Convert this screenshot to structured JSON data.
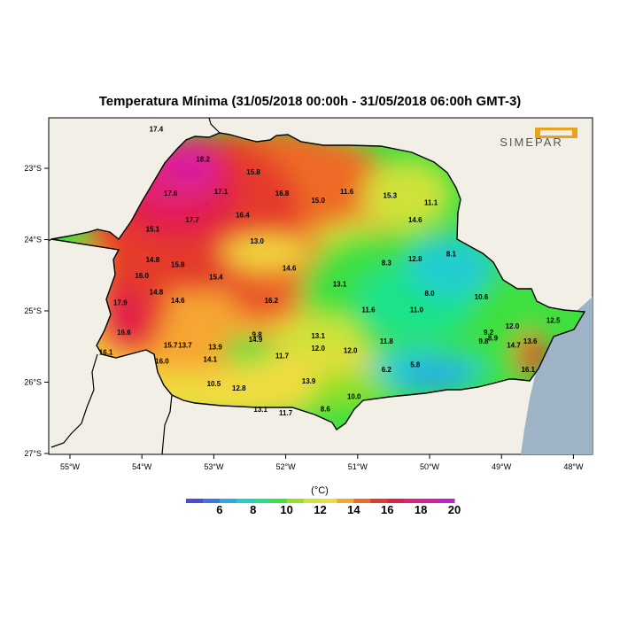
{
  "title": "Temperatura Mínima (31/05/2018 00:00h - 31/05/2018 06:00h GMT-3)",
  "logo_text": "SIMEPAR",
  "colorbar": {
    "unit": "(°C)",
    "labels": [
      "6",
      "8",
      "10",
      "12",
      "14",
      "16",
      "18",
      "20"
    ],
    "colors": [
      "#4a4adc",
      "#3a78e0",
      "#2aaae0",
      "#22cdd0",
      "#1ee28a",
      "#3ee040",
      "#8ee028",
      "#cfe23a",
      "#f0dc40",
      "#f6a632",
      "#ee6a28",
      "#e43a2c",
      "#e21e48",
      "#e0207a",
      "#d81ea8",
      "#c220c8"
    ]
  },
  "axes": {
    "lon_labels": [
      "55°W",
      "54°W",
      "53°W",
      "52°W",
      "51°W",
      "50°W",
      "49°W",
      "48°W"
    ],
    "lat_labels": [
      "23°S",
      "24°S",
      "25°S",
      "26°S",
      "27°S"
    ]
  },
  "station_values": [
    {
      "text": "17.4",
      "lon": -53.8,
      "lat": -22.45
    },
    {
      "text": "18.2",
      "lon": -53.15,
      "lat": -22.87
    },
    {
      "text": "15.8",
      "lon": -52.45,
      "lat": -23.05
    },
    {
      "text": "17.6",
      "lon": -53.6,
      "lat": -23.35
    },
    {
      "text": "17.1",
      "lon": -52.9,
      "lat": -23.32
    },
    {
      "text": "16.8",
      "lon": -52.05,
      "lat": -23.35
    },
    {
      "text": "15.0",
      "lon": -51.55,
      "lat": -23.45
    },
    {
      "text": "11.6",
      "lon": -51.15,
      "lat": -23.32
    },
    {
      "text": "15.3",
      "lon": -50.55,
      "lat": -23.38
    },
    {
      "text": "11.1",
      "lon": -49.98,
      "lat": -23.48
    },
    {
      "text": "16.4",
      "lon": -52.6,
      "lat": -23.65
    },
    {
      "text": "17.7",
      "lon": -53.3,
      "lat": -23.72
    },
    {
      "text": "14.6",
      "lon": -50.2,
      "lat": -23.72
    },
    {
      "text": "15.1",
      "lon": -53.85,
      "lat": -23.85
    },
    {
      "text": "13.0",
      "lon": -52.4,
      "lat": -24.02
    },
    {
      "text": "14.8",
      "lon": -53.85,
      "lat": -24.28
    },
    {
      "text": "15.8",
      "lon": -53.5,
      "lat": -24.35
    },
    {
      "text": "8.1",
      "lon": -49.7,
      "lat": -24.2
    },
    {
      "text": "12.8",
      "lon": -50.2,
      "lat": -24.27
    },
    {
      "text": "8.3",
      "lon": -50.6,
      "lat": -24.32
    },
    {
      "text": "14.6",
      "lon": -51.95,
      "lat": -24.4
    },
    {
      "text": "16.0",
      "lon": -54.0,
      "lat": -24.5
    },
    {
      "text": "15.4",
      "lon": -52.97,
      "lat": -24.52
    },
    {
      "text": "13.1",
      "lon": -51.25,
      "lat": -24.62
    },
    {
      "text": "8.0",
      "lon": -50.0,
      "lat": -24.75
    },
    {
      "text": "10.6",
      "lon": -49.28,
      "lat": -24.8
    },
    {
      "text": "14.8",
      "lon": -53.8,
      "lat": -24.73
    },
    {
      "text": "14.6",
      "lon": -53.5,
      "lat": -24.85
    },
    {
      "text": "16.2",
      "lon": -52.2,
      "lat": -24.85
    },
    {
      "text": "17.9",
      "lon": -54.3,
      "lat": -24.88
    },
    {
      "text": "11.6",
      "lon": -50.85,
      "lat": -24.98
    },
    {
      "text": "11.0",
      "lon": -50.18,
      "lat": -24.98
    },
    {
      "text": "12.5",
      "lon": -48.28,
      "lat": -25.13
    },
    {
      "text": "12.0",
      "lon": -48.85,
      "lat": -25.21
    },
    {
      "text": "16.6",
      "lon": -54.25,
      "lat": -25.3
    },
    {
      "text": "9.8",
      "lon": -52.4,
      "lat": -25.33
    },
    {
      "text": "13.1",
      "lon": -51.55,
      "lat": -25.35
    },
    {
      "text": "9.2",
      "lon": -49.18,
      "lat": -25.3
    },
    {
      "text": "8.9",
      "lon": -49.12,
      "lat": -25.38
    },
    {
      "text": "14.9",
      "lon": -52.42,
      "lat": -25.4
    },
    {
      "text": "9.8",
      "lon": -49.25,
      "lat": -25.42
    },
    {
      "text": "11.8",
      "lon": -50.6,
      "lat": -25.42
    },
    {
      "text": "13.6",
      "lon": -48.6,
      "lat": -25.42
    },
    {
      "text": "14.7",
      "lon": -48.83,
      "lat": -25.48
    },
    {
      "text": "15.7",
      "lon": -53.6,
      "lat": -25.48
    },
    {
      "text": "13.7",
      "lon": -53.4,
      "lat": -25.48
    },
    {
      "text": "13.9",
      "lon": -52.98,
      "lat": -25.5
    },
    {
      "text": "12.0",
      "lon": -51.55,
      "lat": -25.52
    },
    {
      "text": "12.0",
      "lon": -51.1,
      "lat": -25.55
    },
    {
      "text": "16.1",
      "lon": -54.5,
      "lat": -25.58
    },
    {
      "text": "11.7",
      "lon": -52.05,
      "lat": -25.63
    },
    {
      "text": "14.1",
      "lon": -53.05,
      "lat": -25.68
    },
    {
      "text": "16.0",
      "lon": -53.72,
      "lat": -25.7
    },
    {
      "text": "5.8",
      "lon": -50.2,
      "lat": -25.75
    },
    {
      "text": "6.2",
      "lon": -50.6,
      "lat": -25.82
    },
    {
      "text": "16.1",
      "lon": -48.63,
      "lat": -25.82
    },
    {
      "text": "13.9",
      "lon": -51.68,
      "lat": -25.98
    },
    {
      "text": "10.5",
      "lon": -53.0,
      "lat": -26.02
    },
    {
      "text": "12.8",
      "lon": -52.65,
      "lat": -26.08
    },
    {
      "text": "10.0",
      "lon": -51.05,
      "lat": -26.2
    },
    {
      "text": "13.1",
      "lon": -52.35,
      "lat": -26.38
    },
    {
      "text": "8.6",
      "lon": -51.45,
      "lat": -26.37
    },
    {
      "text": "11.7",
      "lon": -52.0,
      "lat": -26.43
    }
  ]
}
